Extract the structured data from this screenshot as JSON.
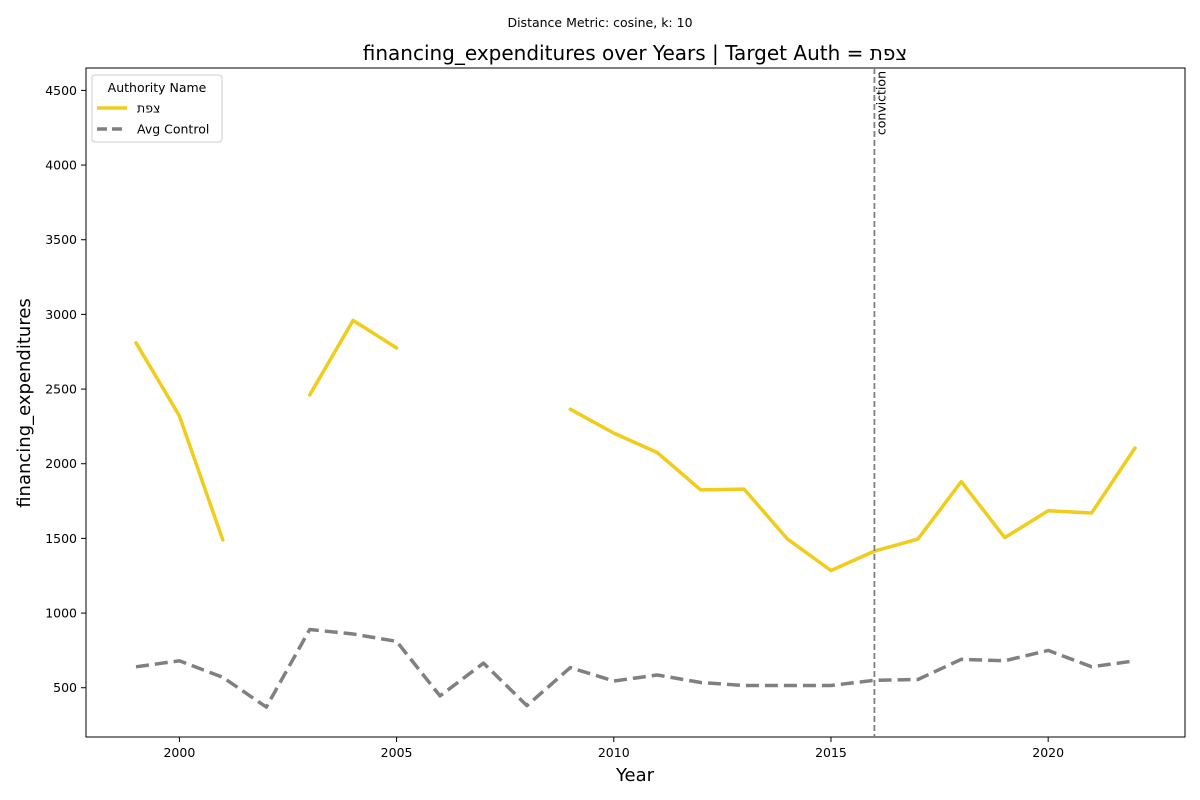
{
  "chart_data": {
    "type": "line",
    "suptitle": "Distance Metric: cosine, k: 10",
    "title": "financing_expenditures over Years | Target Auth = צפת",
    "xlabel": "Year",
    "ylabel": "financing_expenditures",
    "xlim": [
      1997.85,
      2023.15
    ],
    "ylim": [
      170,
      4650
    ],
    "xticks": [
      2000,
      2005,
      2010,
      2015,
      2020
    ],
    "yticks": [
      500,
      1000,
      1500,
      2000,
      2500,
      3000,
      3500,
      4000,
      4500
    ],
    "legend": {
      "title": "Authority Name",
      "position": "top-left"
    },
    "series": [
      {
        "name": "צפת",
        "color": "#f2cc1a",
        "style": "solid",
        "x": [
          1999,
          2000,
          2001,
          2002,
          2003,
          2004,
          2005,
          2006,
          2007,
          2008,
          2009,
          2010,
          2011,
          2012,
          2013,
          2014,
          2015,
          2016,
          2017,
          2018,
          2019,
          2020,
          2021,
          2022
        ],
        "y": [
          2810,
          2320,
          1490,
          null,
          2460,
          2960,
          2775,
          null,
          null,
          null,
          2365,
          2205,
          2075,
          1825,
          1830,
          1495,
          1285,
          1415,
          1495,
          1880,
          1505,
          1685,
          1670,
          2105
        ]
      },
      {
        "name": "Avg Control",
        "color": "#808080",
        "style": "dashed",
        "x": [
          1999,
          2000,
          2001,
          2002,
          2003,
          2004,
          2005,
          2006,
          2007,
          2008,
          2009,
          2010,
          2011,
          2012,
          2013,
          2014,
          2015,
          2016,
          2017,
          2018,
          2019,
          2020,
          2021,
          2022
        ],
        "y": [
          640,
          680,
          570,
          370,
          890,
          860,
          810,
          445,
          665,
          380,
          635,
          545,
          585,
          535,
          515,
          515,
          515,
          550,
          555,
          690,
          680,
          750,
          640,
          680
        ]
      }
    ],
    "annotations": [
      {
        "type": "vline",
        "x": 2016,
        "label": "conviction",
        "color": "#808080",
        "style": "dashed"
      }
    ]
  }
}
